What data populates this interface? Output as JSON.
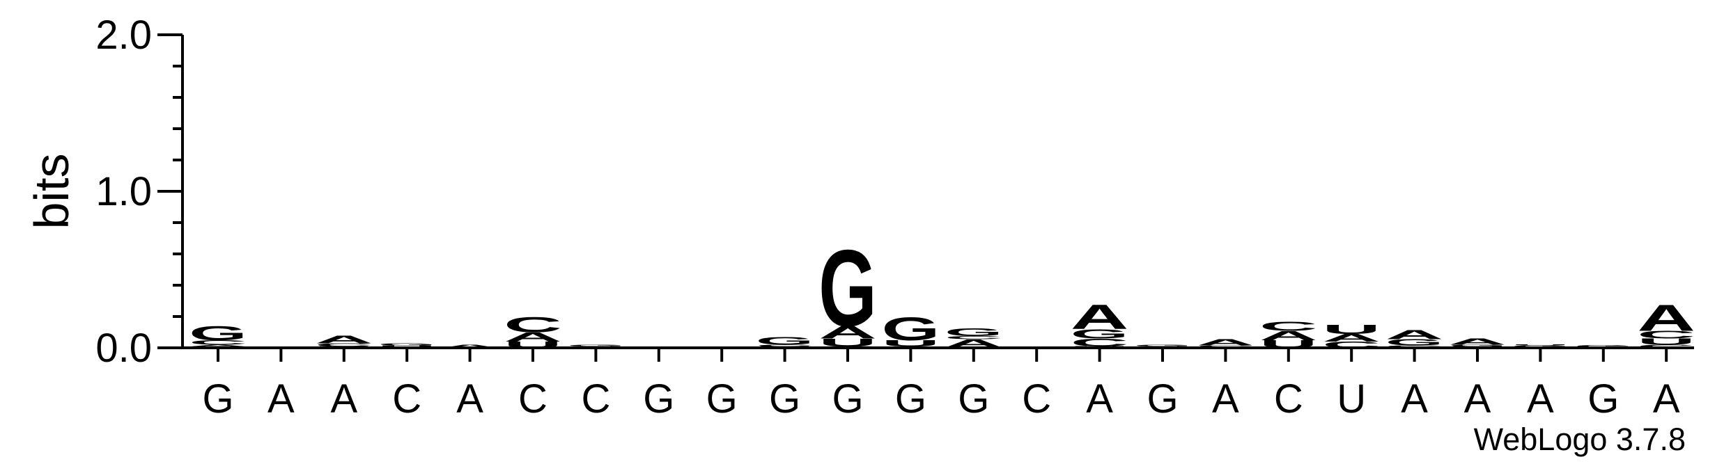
{
  "chart_data": {
    "type": "sequence-logo",
    "ylabel": "bits",
    "ylim": [
      0,
      2.0
    ],
    "yticks": [
      "0.0",
      "1.0",
      "2.0"
    ],
    "credit": "WebLogo 3.7.8",
    "colors": {
      "A": "#ff8c00",
      "U": "#ff8c00",
      "C": "#0000ff",
      "G": "#0000ff"
    },
    "positions": [
      {
        "label": "G",
        "stack": [
          {
            "b": "U",
            "h": 0.01
          },
          {
            "b": "A",
            "h": 0.01
          },
          {
            "b": "C",
            "h": 0.03
          },
          {
            "b": "G",
            "h": 0.09
          }
        ]
      },
      {
        "label": "A",
        "stack": []
      },
      {
        "label": "A",
        "stack": [
          {
            "b": "U",
            "h": 0.01
          },
          {
            "b": "C",
            "h": 0.02
          },
          {
            "b": "A",
            "h": 0.05
          }
        ]
      },
      {
        "label": "C",
        "stack": [
          {
            "b": "A",
            "h": 0.005
          },
          {
            "b": "U",
            "h": 0.01
          },
          {
            "b": "G",
            "h": 0.015
          }
        ]
      },
      {
        "label": "A",
        "stack": [
          {
            "b": "A",
            "h": 0.02
          }
        ]
      },
      {
        "label": "C",
        "stack": [
          {
            "b": "U",
            "h": 0.04
          },
          {
            "b": "A",
            "h": 0.06
          },
          {
            "b": "C",
            "h": 0.1
          }
        ]
      },
      {
        "label": "C",
        "stack": [
          {
            "b": "U",
            "h": 0.005
          },
          {
            "b": "A",
            "h": 0.005
          },
          {
            "b": "G",
            "h": 0.01
          }
        ]
      },
      {
        "label": "G",
        "stack": []
      },
      {
        "label": "G",
        "stack": []
      },
      {
        "label": "G",
        "stack": [
          {
            "b": "A",
            "h": 0.005
          },
          {
            "b": "U",
            "h": 0.005
          },
          {
            "b": "C",
            "h": 0.01
          },
          {
            "b": "G",
            "h": 0.05
          }
        ]
      },
      {
        "label": "G",
        "stack": [
          {
            "b": "C",
            "h": 0.01
          },
          {
            "b": "U",
            "h": 0.05
          },
          {
            "b": "A",
            "h": 0.08
          },
          {
            "b": "G",
            "h": 0.5
          }
        ]
      },
      {
        "label": "G",
        "stack": [
          {
            "b": "A",
            "h": 0.01
          },
          {
            "b": "U",
            "h": 0.04
          },
          {
            "b": "G",
            "h": 0.15
          }
        ]
      },
      {
        "label": "G",
        "stack": [
          {
            "b": "U",
            "h": 0.005
          },
          {
            "b": "A",
            "h": 0.05
          },
          {
            "b": "C",
            "h": 0.02
          },
          {
            "b": "G",
            "h": 0.05
          }
        ]
      },
      {
        "label": "C",
        "stack": []
      },
      {
        "label": "A",
        "stack": [
          {
            "b": "U",
            "h": 0.01
          },
          {
            "b": "C",
            "h": 0.05
          },
          {
            "b": "G",
            "h": 0.06
          },
          {
            "b": "A",
            "h": 0.16
          }
        ]
      },
      {
        "label": "G",
        "stack": [
          {
            "b": "U",
            "h": 0.005
          },
          {
            "b": "A",
            "h": 0.005
          },
          {
            "b": "G",
            "h": 0.01
          }
        ]
      },
      {
        "label": "A",
        "stack": [
          {
            "b": "G",
            "h": 0.005
          },
          {
            "b": "C",
            "h": 0.01
          },
          {
            "b": "A",
            "h": 0.04
          }
        ]
      },
      {
        "label": "C",
        "stack": [
          {
            "b": "U",
            "h": 0.05
          },
          {
            "b": "A",
            "h": 0.06
          },
          {
            "b": "C",
            "h": 0.06
          }
        ]
      },
      {
        "label": "U",
        "stack": [
          {
            "b": "C",
            "h": 0.04
          },
          {
            "b": "A",
            "h": 0.05
          },
          {
            "b": "U",
            "h": 0.06
          }
        ]
      },
      {
        "label": "A",
        "stack": [
          {
            "b": "U",
            "h": 0.005
          },
          {
            "b": "C",
            "h": 0.01
          },
          {
            "b": "G",
            "h": 0.04
          },
          {
            "b": "A",
            "h": 0.06
          }
        ]
      },
      {
        "label": "A",
        "stack": [
          {
            "b": "C",
            "h": 0.005
          },
          {
            "b": "U",
            "h": 0.005
          },
          {
            "b": "G",
            "h": 0.01
          },
          {
            "b": "A",
            "h": 0.04
          }
        ]
      },
      {
        "label": "A",
        "stack": [
          {
            "b": "A",
            "h": 0.005
          },
          {
            "b": "G",
            "h": 0.01
          },
          {
            "b": "U",
            "h": 0.005
          }
        ]
      },
      {
        "label": "G",
        "stack": [
          {
            "b": "A",
            "h": 0.005
          },
          {
            "b": "G",
            "h": 0.015
          }
        ]
      },
      {
        "label": "A",
        "stack": [
          {
            "b": "C",
            "h": 0.02
          },
          {
            "b": "U",
            "h": 0.04
          },
          {
            "b": "C",
            "h": 0.05
          },
          {
            "b": "A",
            "h": 0.17
          }
        ]
      }
    ]
  }
}
